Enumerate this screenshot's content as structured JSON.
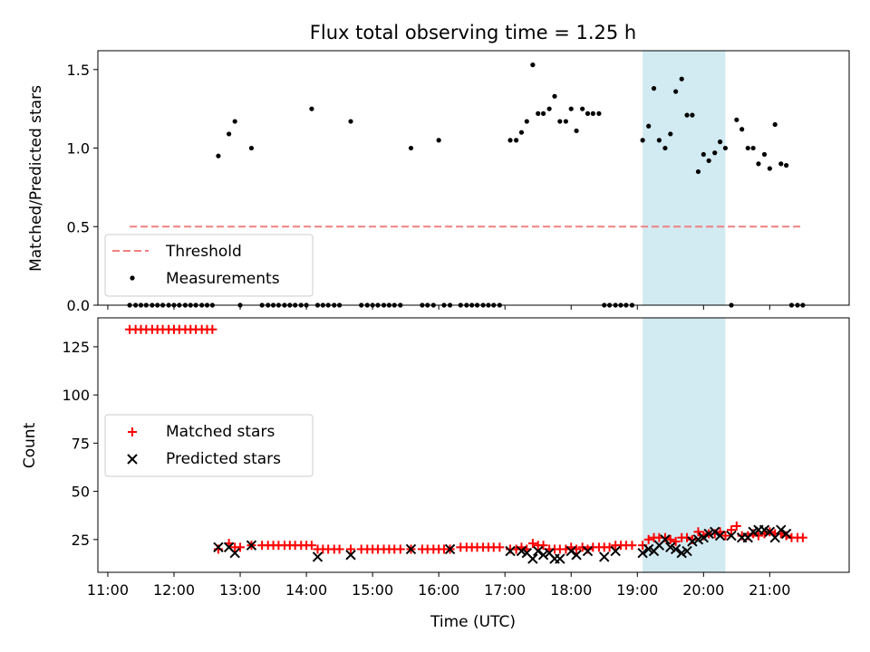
{
  "chart_data": {
    "title": "Flux total observing time = 1.25 h",
    "xlabel": "Time (UTC)",
    "x_tick_labels": [
      "11:00",
      "12:00",
      "13:00",
      "14:00",
      "15:00",
      "16:00",
      "17:00",
      "18:00",
      "19:00",
      "20:00",
      "21:00"
    ],
    "xlim_hours": [
      10.85,
      22.2
    ],
    "shaded_interval_hours": [
      19.08,
      20.33
    ],
    "shade_color": "#add8e6",
    "panels": [
      {
        "type": "scatter",
        "ylabel": "Matched/Predicted stars",
        "ylim": [
          0,
          1.62
        ],
        "y_ticks": [
          0,
          0.5,
          1.0,
          1.5
        ],
        "y_tick_labels": [
          "0.0",
          "0.5",
          "1.0",
          "1.5"
        ],
        "legend": [
          "Threshold",
          "Measurements"
        ],
        "threshold": {
          "name": "Threshold",
          "value": 0.5,
          "x_range_hours": [
            11.33,
            21.5
          ],
          "color": "#f08080"
        },
        "measurements": {
          "name": "Measurements",
          "color": "#000000",
          "x_hours": [
            11.33,
            11.42,
            11.5,
            11.58,
            11.67,
            11.75,
            11.83,
            11.92,
            12.0,
            12.08,
            12.17,
            12.25,
            12.33,
            12.42,
            12.5,
            12.58,
            12.67,
            12.83,
            12.92,
            13.0,
            13.17,
            13.33,
            13.42,
            13.5,
            13.58,
            13.67,
            13.75,
            13.83,
            13.92,
            14.0,
            14.08,
            14.17,
            14.25,
            14.33,
            14.42,
            14.5,
            14.67,
            14.83,
            14.92,
            15.0,
            15.08,
            15.17,
            15.25,
            15.33,
            15.42,
            15.58,
            15.75,
            15.83,
            15.92,
            16.0,
            16.08,
            16.17,
            16.33,
            16.42,
            16.5,
            16.58,
            16.67,
            16.75,
            16.83,
            16.92,
            17.08,
            17.17,
            17.25,
            17.33,
            17.42,
            17.5,
            17.58,
            17.67,
            17.75,
            17.83,
            17.92,
            18.0,
            18.08,
            18.17,
            18.25,
            18.33,
            18.42,
            18.5,
            18.58,
            18.67,
            18.75,
            18.83,
            18.92,
            19.08,
            19.17,
            19.25,
            19.33,
            19.42,
            19.5,
            19.58,
            19.67,
            19.75,
            19.83,
            19.92,
            20.0,
            20.08,
            20.17,
            20.25,
            20.33,
            20.42,
            20.5,
            20.58,
            20.67,
            20.75,
            20.83,
            20.92,
            21.0,
            21.08,
            21.17,
            21.25,
            21.33,
            21.42,
            21.5
          ],
          "values": [
            0,
            0,
            0,
            0,
            0,
            0,
            0,
            0,
            0,
            0,
            0,
            0,
            0,
            0,
            0,
            0,
            0.95,
            1.09,
            1.17,
            0,
            1.0,
            0,
            0,
            0,
            0,
            0,
            0,
            0,
            0,
            0,
            1.25,
            0,
            0,
            0,
            0,
            0,
            1.17,
            0,
            0,
            0,
            0,
            0,
            0,
            0,
            0,
            1.0,
            0,
            0,
            0,
            1.05,
            0,
            0,
            0,
            0,
            0,
            0,
            0,
            0,
            0,
            0,
            1.05,
            1.05,
            1.1,
            1.17,
            1.53,
            1.22,
            1.22,
            1.25,
            1.33,
            1.17,
            1.17,
            1.25,
            1.11,
            1.25,
            1.22,
            1.22,
            1.22,
            0,
            0,
            0,
            0,
            0,
            0,
            1.05,
            1.14,
            1.38,
            1.05,
            1.0,
            1.09,
            1.36,
            1.44,
            1.21,
            1.21,
            0.85,
            0.96,
            0.92,
            0.97,
            1.04,
            1.0,
            0,
            1.18,
            1.12,
            1.0,
            1.0,
            0.9,
            0.96,
            0.87,
            1.15,
            0.9,
            0.89,
            0,
            0,
            0
          ]
        }
      },
      {
        "type": "scatter",
        "ylabel": "Count",
        "xlabel": "Time (UTC)",
        "ylim": [
          8,
          140
        ],
        "y_ticks": [
          25,
          50,
          75,
          100,
          125
        ],
        "y_tick_labels": [
          "25",
          "50",
          "75",
          "100",
          "125"
        ],
        "legend": [
          "Matched stars",
          "Predicted stars"
        ],
        "matched": {
          "name": "Matched stars",
          "color": "#ff0000",
          "x_hours": [
            11.33,
            11.42,
            11.5,
            11.58,
            11.67,
            11.75,
            11.83,
            11.92,
            12.0,
            12.08,
            12.17,
            12.25,
            12.33,
            12.42,
            12.5,
            12.58,
            12.67,
            12.83,
            12.92,
            13.0,
            13.17,
            13.33,
            13.42,
            13.5,
            13.58,
            13.67,
            13.75,
            13.83,
            13.92,
            14.0,
            14.08,
            14.17,
            14.25,
            14.33,
            14.42,
            14.5,
            14.67,
            14.83,
            14.92,
            15.0,
            15.08,
            15.17,
            15.25,
            15.33,
            15.42,
            15.58,
            15.75,
            15.83,
            15.92,
            16.0,
            16.08,
            16.17,
            16.33,
            16.42,
            16.5,
            16.58,
            16.67,
            16.75,
            16.83,
            16.92,
            17.08,
            17.17,
            17.25,
            17.33,
            17.42,
            17.5,
            17.58,
            17.67,
            17.75,
            17.83,
            17.92,
            18.0,
            18.08,
            18.17,
            18.25,
            18.33,
            18.42,
            18.5,
            18.58,
            18.67,
            18.75,
            18.83,
            18.92,
            19.08,
            19.17,
            19.25,
            19.33,
            19.42,
            19.5,
            19.58,
            19.67,
            19.75,
            19.83,
            19.92,
            20.0,
            20.08,
            20.17,
            20.25,
            20.33,
            20.42,
            20.5,
            20.58,
            20.67,
            20.75,
            20.83,
            20.92,
            21.0,
            21.08,
            21.17,
            21.25,
            21.33,
            21.42,
            21.5
          ],
          "values": [
            134,
            134,
            134,
            134,
            134,
            134,
            134,
            134,
            134,
            134,
            134,
            134,
            134,
            134,
            134,
            134,
            20,
            23,
            21,
            21,
            22,
            22,
            22,
            22,
            22,
            22,
            22,
            22,
            22,
            22,
            22,
            20,
            20,
            20,
            20,
            20,
            20,
            20,
            20,
            20,
            20,
            20,
            20,
            20,
            20,
            20,
            20,
            20,
            20,
            20,
            20,
            20,
            21,
            21,
            21,
            21,
            21,
            21,
            21,
            21,
            20,
            20,
            21,
            20,
            23,
            22,
            22,
            20,
            20,
            20,
            20,
            21,
            20,
            21,
            20,
            21,
            21,
            21,
            21,
            22,
            22,
            22,
            22,
            22,
            25,
            26,
            26,
            26,
            25,
            24,
            26,
            26,
            25,
            29,
            27,
            28,
            28,
            29,
            27,
            30,
            32,
            27,
            27,
            28,
            27,
            28,
            29,
            28,
            28,
            27,
            26,
            26,
            26
          ]
        },
        "predicted": {
          "name": "Predicted stars",
          "color": "#000000",
          "x_hours": [
            12.67,
            12.83,
            12.92,
            13.17,
            14.17,
            14.67,
            15.58,
            16.17,
            17.08,
            17.25,
            17.33,
            17.42,
            17.5,
            17.58,
            17.67,
            17.75,
            17.83,
            18.0,
            18.08,
            18.25,
            18.5,
            18.67,
            19.08,
            19.17,
            19.25,
            19.33,
            19.42,
            19.5,
            19.58,
            19.67,
            19.75,
            19.83,
            19.92,
            20.0,
            20.08,
            20.17,
            20.25,
            20.42,
            20.58,
            20.67,
            20.75,
            20.83,
            20.92,
            21.0,
            21.08,
            21.17,
            21.25
          ],
          "values": [
            21,
            21,
            18,
            22,
            16,
            17,
            20,
            20,
            19,
            19,
            18,
            15,
            19,
            17,
            18,
            15,
            15,
            19,
            17,
            19,
            16,
            19,
            18,
            20,
            19,
            22,
            25,
            21,
            20,
            18,
            19,
            24,
            25,
            26,
            28,
            29,
            27,
            27,
            26,
            26,
            29,
            30,
            30,
            29,
            26,
            30,
            28
          ]
        }
      }
    ]
  }
}
